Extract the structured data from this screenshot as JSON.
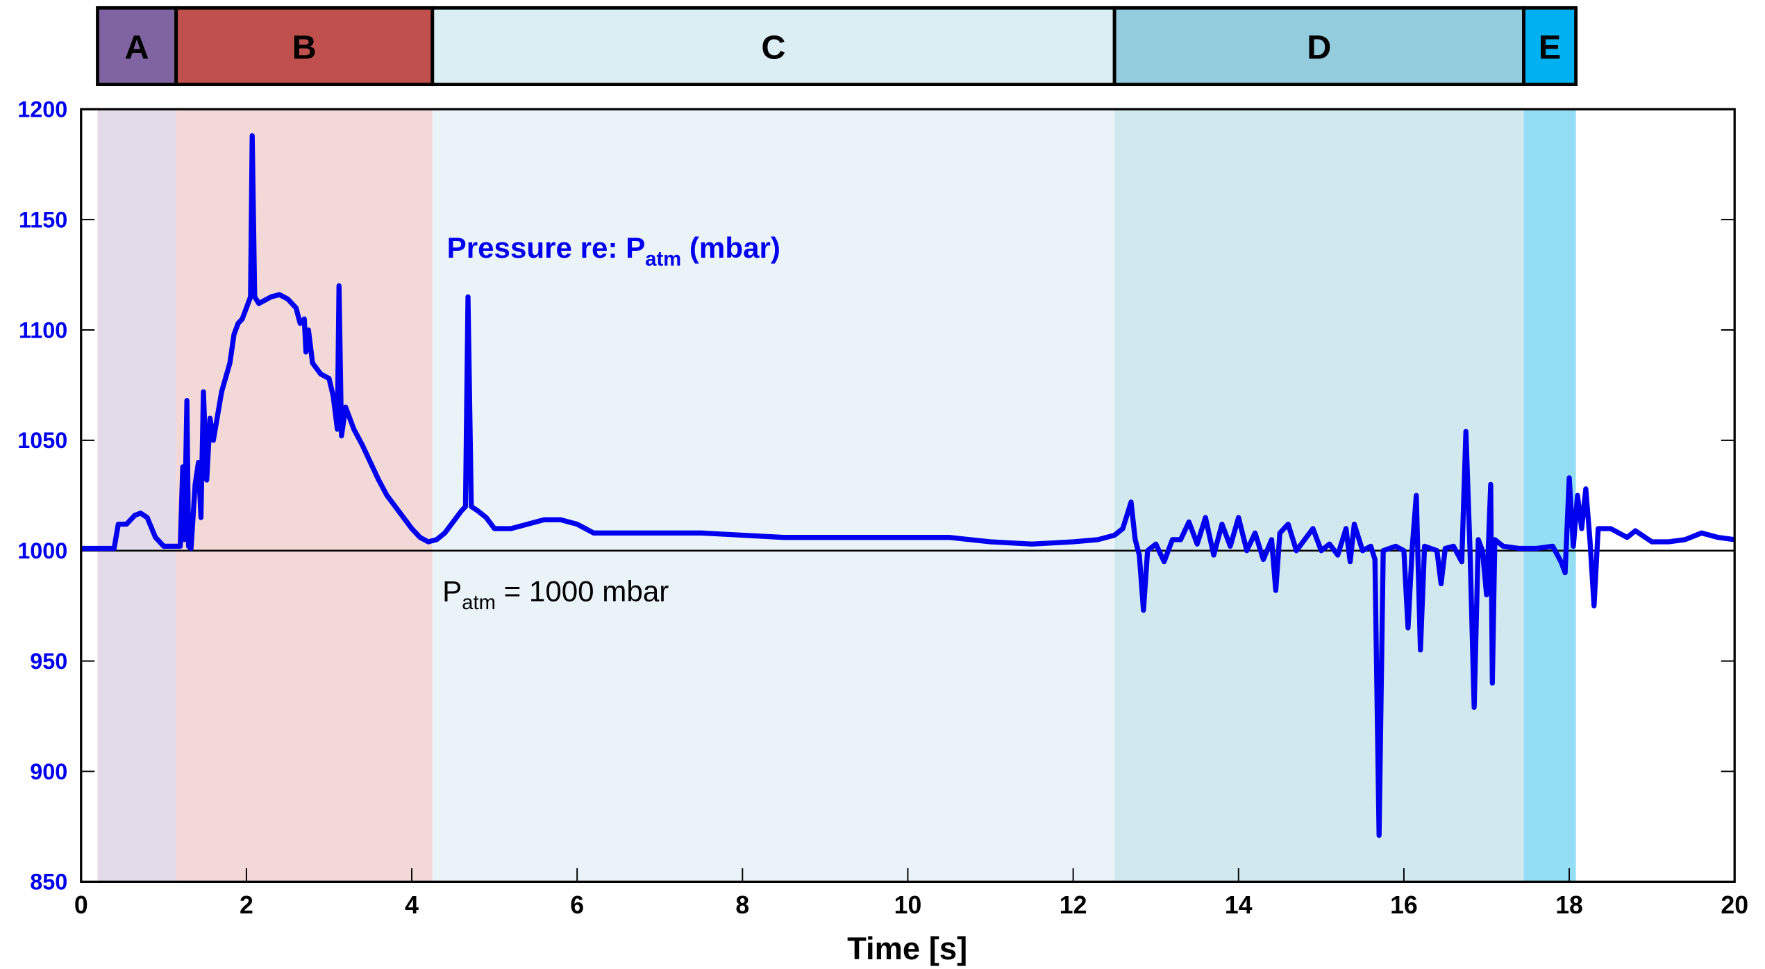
{
  "chart_data": {
    "type": "line",
    "xlabel": "Time [s]",
    "xlim": [
      0,
      20
    ],
    "xticks": [
      0,
      2,
      4,
      6,
      8,
      10,
      12,
      14,
      16,
      18,
      20
    ],
    "ylim": [
      850,
      1200
    ],
    "yticks": [
      850,
      900,
      950,
      1000,
      1050,
      1100,
      1150,
      1200
    ],
    "phases": [
      {
        "label": "A",
        "start": 0.2,
        "end": 1.15,
        "color": "#e3dbe9",
        "header_color": "#8064a2"
      },
      {
        "label": "B",
        "start": 1.15,
        "end": 4.25,
        "color": "#f2d9d8",
        "header_color": "#c0504d"
      },
      {
        "label": "C",
        "start": 4.25,
        "end": 12.5,
        "color": "#eaf4f8",
        "header_color": "#dbeef4"
      },
      {
        "label": "D",
        "start": 12.5,
        "end": 17.45,
        "color": "#d2e8ef",
        "header_color": "#93cddd"
      },
      {
        "label": "E",
        "start": 17.45,
        "end": 18.08,
        "color": "#93def5",
        "header_color": "#00b0f0"
      }
    ],
    "reference_line": {
      "value": 1000,
      "label_main": "P",
      "label_sub": "atm",
      "label_after": " = 1000 mbar"
    },
    "series_label": {
      "main": "Pressure re: P",
      "sub": "atm",
      "after": " (mbar)"
    },
    "x": [
      0,
      0.4,
      0.45,
      0.55,
      0.65,
      0.72,
      0.8,
      0.9,
      1.0,
      1.15,
      1.2,
      1.23,
      1.25,
      1.28,
      1.3,
      1.33,
      1.38,
      1.42,
      1.45,
      1.48,
      1.52,
      1.56,
      1.6,
      1.7,
      1.8,
      1.85,
      1.9,
      1.95,
      2.0,
      2.05,
      2.07,
      2.1,
      2.15,
      2.2,
      2.3,
      2.4,
      2.5,
      2.6,
      2.65,
      2.7,
      2.72,
      2.75,
      2.8,
      2.9,
      3.0,
      3.05,
      3.1,
      3.12,
      3.15,
      3.2,
      3.3,
      3.4,
      3.5,
      3.6,
      3.7,
      3.8,
      3.9,
      4.0,
      4.1,
      4.2,
      4.3,
      4.4,
      4.5,
      4.6,
      4.65,
      4.68,
      4.72,
      4.8,
      4.9,
      5.0,
      5.2,
      5.4,
      5.6,
      5.8,
      6.0,
      6.2,
      6.5,
      7.0,
      7.5,
      8.0,
      8.5,
      9.0,
      9.5,
      10.0,
      10.5,
      11.0,
      11.5,
      12.0,
      12.3,
      12.5,
      12.6,
      12.7,
      12.75,
      12.8,
      12.85,
      12.9,
      13.0,
      13.1,
      13.2,
      13.3,
      13.4,
      13.5,
      13.6,
      13.7,
      13.8,
      13.9,
      14.0,
      14.1,
      14.2,
      14.3,
      14.4,
      14.45,
      14.5,
      14.6,
      14.7,
      14.8,
      14.9,
      15.0,
      15.1,
      15.2,
      15.3,
      15.35,
      15.4,
      15.5,
      15.6,
      15.65,
      15.7,
      15.75,
      15.9,
      16.0,
      16.05,
      16.1,
      16.15,
      16.2,
      16.25,
      16.4,
      16.45,
      16.5,
      16.6,
      16.7,
      16.75,
      16.8,
      16.85,
      16.9,
      16.95,
      17.0,
      17.05,
      17.07,
      17.1,
      17.2,
      17.4,
      17.6,
      17.8,
      17.9,
      17.95,
      18.0,
      18.05,
      18.1,
      18.15,
      18.2,
      18.25,
      18.3,
      18.35,
      18.5,
      18.7,
      18.8,
      19.0,
      19.2,
      19.4,
      19.6,
      19.8,
      20.0
    ],
    "series": [
      {
        "color": "#0000ee",
        "values": [
          1001,
          1001,
          1012,
          1012,
          1016,
          1017,
          1015,
          1006,
          1002,
          1002,
          1002,
          1038,
          1005,
          1068,
          1002,
          1001,
          1030,
          1040,
          1015,
          1072,
          1032,
          1060,
          1050,
          1072,
          1085,
          1098,
          1103,
          1105,
          1110,
          1115,
          1188,
          1115,
          1112,
          1113,
          1115,
          1116,
          1114,
          1110,
          1103,
          1105,
          1090,
          1100,
          1085,
          1080,
          1078,
          1070,
          1055,
          1120,
          1052,
          1065,
          1055,
          1048,
          1040,
          1032,
          1025,
          1020,
          1015,
          1010,
          1006,
          1004,
          1005,
          1008,
          1013,
          1018,
          1020,
          1115,
          1020,
          1018,
          1015,
          1010,
          1010,
          1012,
          1014,
          1014,
          1012,
          1008,
          1008,
          1008,
          1008,
          1007,
          1006,
          1006,
          1006,
          1006,
          1006,
          1004,
          1003,
          1004,
          1005,
          1007,
          1010,
          1022,
          1005,
          998,
          973,
          1000,
          1003,
          995,
          1005,
          1005,
          1013,
          1003,
          1015,
          998,
          1012,
          1002,
          1015,
          1000,
          1008,
          996,
          1005,
          982,
          1008,
          1012,
          1000,
          1005,
          1010,
          1000,
          1003,
          998,
          1010,
          995,
          1012,
          1000,
          1002,
          996,
          871,
          1000,
          1002,
          1000,
          965,
          1001,
          1025,
          955,
          1002,
          1000,
          985,
          1001,
          1002,
          995,
          1054,
          1000,
          929,
          1005,
          1000,
          980,
          1030,
          940,
          1005,
          1002,
          1001,
          1001,
          1002,
          995,
          990,
          1033,
          1002,
          1025,
          1010,
          1028,
          1005,
          975,
          1010,
          1010,
          1006,
          1009,
          1004,
          1004,
          1005,
          1008,
          1006,
          1005
        ]
      }
    ]
  }
}
